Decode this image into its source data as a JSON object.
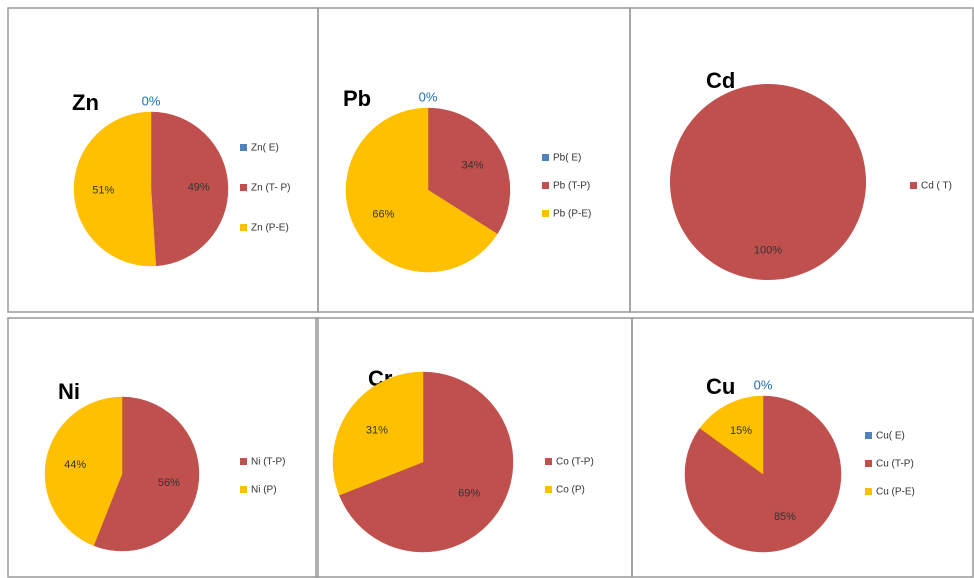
{
  "chart_data": [
    {
      "type": "pie",
      "title": "Zn",
      "categories": [
        "Zn( E)",
        "Zn (T- P)",
        "Zn (P-E)"
      ],
      "values": [
        0,
        49,
        51
      ],
      "value_labels": [
        "0%",
        "49%",
        "51%"
      ],
      "colors": [
        "#4f81bd",
        "#c0504d",
        "#ffc000"
      ]
    },
    {
      "type": "pie",
      "title": "Pb",
      "categories": [
        "Pb( E)",
        "Pb (T-P)",
        "Pb (P-E)"
      ],
      "values": [
        0,
        34,
        66
      ],
      "value_labels": [
        "0%",
        "34%",
        "66%"
      ],
      "colors": [
        "#4f81bd",
        "#c0504d",
        "#ffc000"
      ]
    },
    {
      "type": "pie",
      "title": "Cd",
      "categories": [
        "Cd ( T)"
      ],
      "values": [
        100
      ],
      "value_labels": [
        "100%"
      ],
      "colors": [
        "#c0504d"
      ]
    },
    {
      "type": "pie",
      "title": "Ni",
      "categories": [
        "Ni (T-P)",
        "Ni (P)"
      ],
      "values": [
        56,
        44
      ],
      "value_labels": [
        "56%",
        "44%"
      ],
      "colors": [
        "#c0504d",
        "#ffc000"
      ]
    },
    {
      "type": "pie",
      "title": "Cr",
      "categories": [
        "Co (T-P)",
        "Co (P)"
      ],
      "values": [
        69,
        31
      ],
      "value_labels": [
        "69%",
        "31%"
      ],
      "colors": [
        "#c0504d",
        "#ffc000"
      ]
    },
    {
      "type": "pie",
      "title": "Cu",
      "categories": [
        "Cu( E)",
        "Cu (T-P)",
        "Cu (P-E)"
      ],
      "values": [
        0,
        85,
        15
      ],
      "value_labels": [
        "0%",
        "85%",
        "15%"
      ],
      "colors": [
        "#4f81bd",
        "#c0504d",
        "#ffc000"
      ]
    }
  ]
}
